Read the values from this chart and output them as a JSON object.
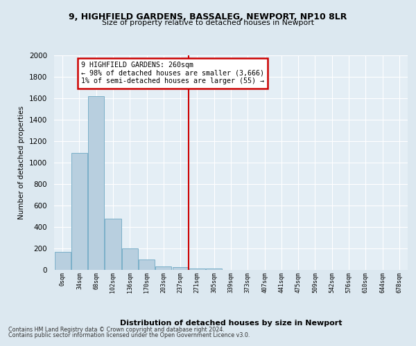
{
  "title1": "9, HIGHFIELD GARDENS, BASSALEG, NEWPORT, NP10 8LR",
  "title2": "Size of property relative to detached houses in Newport",
  "xlabel": "Distribution of detached houses by size in Newport",
  "ylabel": "Number of detached properties",
  "bar_labels": [
    "0sqm",
    "34sqm",
    "68sqm",
    "102sqm",
    "136sqm",
    "170sqm",
    "203sqm",
    "237sqm",
    "271sqm",
    "305sqm",
    "339sqm",
    "373sqm",
    "407sqm",
    "441sqm",
    "475sqm",
    "509sqm",
    "542sqm",
    "576sqm",
    "610sqm",
    "644sqm",
    "678sqm"
  ],
  "bar_values": [
    165,
    1090,
    1620,
    480,
    200,
    100,
    35,
    25,
    15,
    10,
    0,
    0,
    0,
    0,
    0,
    0,
    0,
    0,
    0,
    0,
    0
  ],
  "bar_color": "#b8cfdf",
  "bar_edge_color": "#7aafc8",
  "ylim": [
    0,
    2000
  ],
  "yticks": [
    0,
    200,
    400,
    600,
    800,
    1000,
    1200,
    1400,
    1600,
    1800,
    2000
  ],
  "vline_x": 7.5,
  "vline_color": "#cc0000",
  "annotation_title": "9 HIGHFIELD GARDENS: 260sqm",
  "annotation_line1": "← 98% of detached houses are smaller (3,666)",
  "annotation_line2": "1% of semi-detached houses are larger (55) →",
  "annotation_box_color": "#cc0000",
  "footer1": "Contains HM Land Registry data © Crown copyright and database right 2024.",
  "footer2": "Contains public sector information licensed under the Open Government Licence v3.0.",
  "bg_color": "#dce8f0",
  "plot_bg_color": "#e4eef5"
}
